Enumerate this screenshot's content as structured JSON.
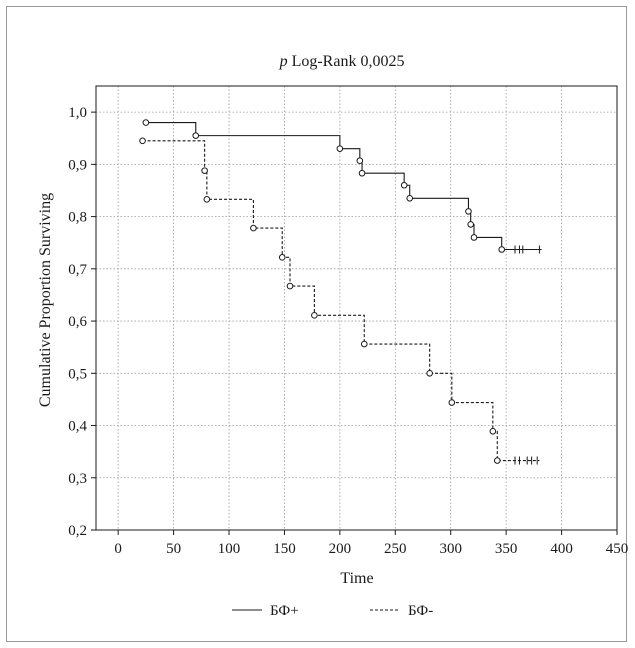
{
  "chart_data": {
    "type": "line",
    "title_italic": "p",
    "title_rest": " Log-Rank 0,0025",
    "xlabel": "Time",
    "ylabel": "Cumulative Proportion Surviving",
    "xlim": [
      -20,
      450
    ],
    "ylim": [
      0.2,
      1.05
    ],
    "xticks": [
      0,
      50,
      100,
      150,
      200,
      250,
      300,
      350,
      400,
      450
    ],
    "yticks": [
      0.2,
      0.3,
      0.4,
      0.5,
      0.6,
      0.7,
      0.8,
      0.9,
      1.0
    ],
    "xtick_labels": [
      "0",
      "50",
      "100",
      "150",
      "200",
      "250",
      "300",
      "350",
      "400",
      "450"
    ],
    "ytick_labels": [
      "0,2",
      "0,3",
      "0,4",
      "0,5",
      "0,6",
      "0,7",
      "0,8",
      "0,9",
      "1,0"
    ],
    "grid": true,
    "legend_position": "bottom-center",
    "series": [
      {
        "name": "БФ+",
        "style": "solid",
        "steps": [
          [
            25,
            0.98
          ],
          [
            70,
            0.955
          ],
          [
            200,
            0.93
          ],
          [
            218,
            0.907
          ],
          [
            220,
            0.883
          ],
          [
            258,
            0.86
          ],
          [
            263,
            0.835
          ],
          [
            316,
            0.81
          ],
          [
            318,
            0.785
          ],
          [
            321,
            0.76
          ],
          [
            346,
            0.737
          ],
          [
            382,
            0.737
          ]
        ],
        "events": [
          [
            25,
            0.98
          ],
          [
            70,
            0.955
          ],
          [
            200,
            0.93
          ],
          [
            218,
            0.907
          ],
          [
            220,
            0.883
          ],
          [
            258,
            0.86
          ],
          [
            263,
            0.835
          ],
          [
            316,
            0.81
          ],
          [
            318,
            0.785
          ],
          [
            321,
            0.76
          ],
          [
            346,
            0.737
          ]
        ],
        "censored": [
          [
            358,
            0.737
          ],
          [
            362,
            0.737
          ],
          [
            365,
            0.737
          ],
          [
            380,
            0.737
          ]
        ]
      },
      {
        "name": "БФ-",
        "style": "dashed",
        "steps": [
          [
            22,
            0.945
          ],
          [
            78,
            0.888
          ],
          [
            80,
            0.833
          ],
          [
            122,
            0.778
          ],
          [
            148,
            0.722
          ],
          [
            155,
            0.667
          ],
          [
            177,
            0.611
          ],
          [
            222,
            0.556
          ],
          [
            281,
            0.5
          ],
          [
            301,
            0.444
          ],
          [
            338,
            0.389
          ],
          [
            342,
            0.333
          ],
          [
            380,
            0.333
          ]
        ],
        "events": [
          [
            22,
            0.945
          ],
          [
            78,
            0.888
          ],
          [
            80,
            0.833
          ],
          [
            122,
            0.778
          ],
          [
            148,
            0.722
          ],
          [
            155,
            0.667
          ],
          [
            177,
            0.611
          ],
          [
            222,
            0.556
          ],
          [
            281,
            0.5
          ],
          [
            301,
            0.444
          ],
          [
            338,
            0.389
          ],
          [
            342,
            0.333
          ]
        ],
        "censored": [
          [
            358,
            0.333
          ],
          [
            362,
            0.333
          ],
          [
            369,
            0.333
          ],
          [
            373,
            0.333
          ],
          [
            378,
            0.333
          ]
        ]
      }
    ]
  }
}
